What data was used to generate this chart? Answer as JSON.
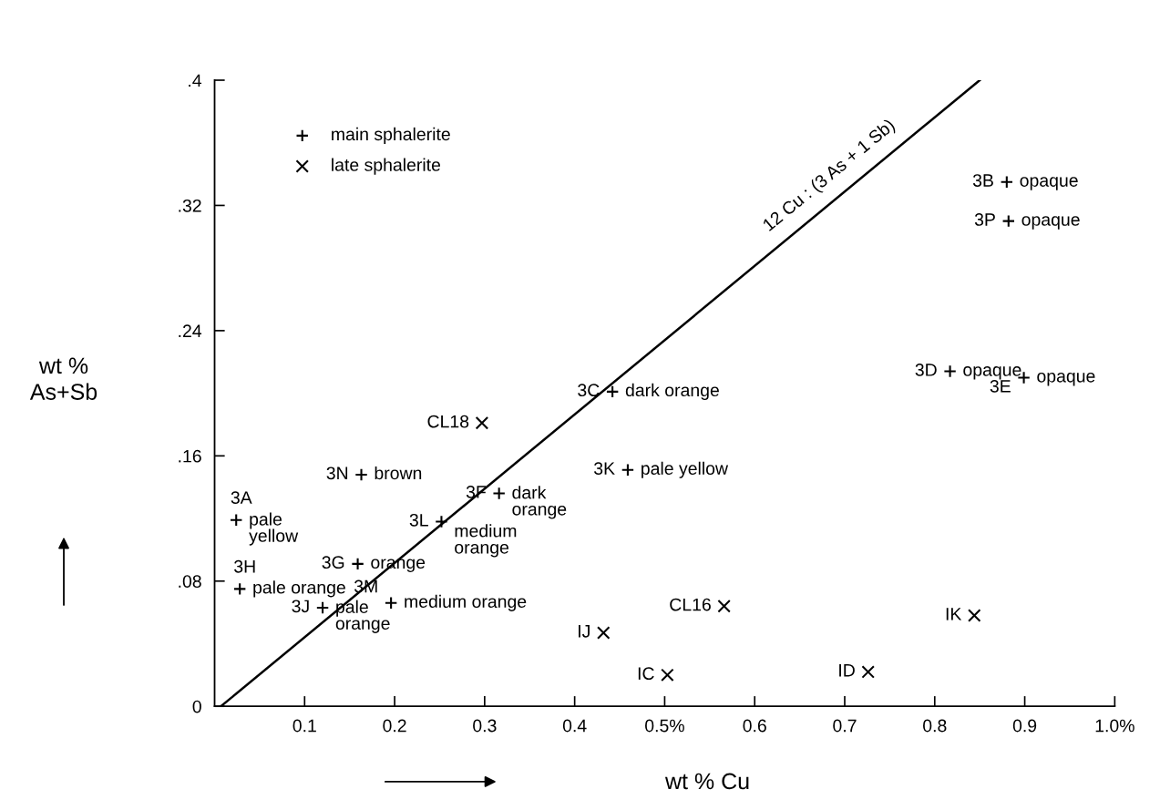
{
  "chart_data": {
    "type": "scatter",
    "xlabel": "wt % Cu",
    "ylabel": "wt %\nAs+Sb",
    "xlim": [
      0,
      1.0
    ],
    "ylim": [
      0,
      0.4
    ],
    "xticks": [
      0.1,
      0.2,
      0.3,
      0.4,
      {
        "value": 0.5,
        "label": "0.5%"
      },
      0.6,
      0.7,
      0.8,
      0.9,
      {
        "value": 1.0,
        "label": "1.0%"
      }
    ],
    "yticks": [
      {
        "value": 0,
        "label": "0"
      },
      {
        "value": 0.08,
        "label": ".08"
      },
      {
        "value": 0.16,
        "label": ".16"
      },
      {
        "value": 0.24,
        "label": ".24"
      },
      {
        "value": 0.32,
        "label": ".32"
      },
      {
        "value": 0.4,
        "label": ".4"
      }
    ],
    "grid": false,
    "legend": "top left",
    "series": [
      {
        "name": "main sphalerite",
        "color": "#000000",
        "marker": "plus",
        "x": [
          0.024,
          0.028,
          0.163,
          0.316,
          0.252,
          0.159,
          0.12,
          0.196,
          0.459,
          0.442,
          0.88,
          0.882,
          0.817,
          0.899
        ],
        "values": [
          0.119,
          0.075,
          0.148,
          0.136,
          0.118,
          0.091,
          0.063,
          0.066,
          0.151,
          0.201,
          0.335,
          0.31,
          0.214,
          0.21
        ]
      },
      {
        "name": "late sphalerite",
        "color": "#000000",
        "marker": "cross",
        "x": [
          0.297,
          0.432,
          0.503,
          0.566,
          0.726,
          0.844
        ],
        "values": [
          0.181,
          0.047,
          0.02,
          0.064,
          0.022,
          0.058
        ]
      },
      {
        "type": "line",
        "color": "#000000",
        "line_style": "solid",
        "x": [
          0.007,
          0.85
        ],
        "values": [
          0,
          0.4
        ]
      }
    ],
    "annotations": [
      {
        "text": "3A",
        "x": 0.024,
        "y": 0.119
      },
      {
        "text": "pale\nyellow",
        "x": 0.024,
        "y": 0.119
      },
      {
        "text": "3H",
        "x": 0.028,
        "y": 0.075
      },
      {
        "text": "pale orange",
        "x": 0.028,
        "y": 0.075
      },
      {
        "text": "3N",
        "x": 0.163,
        "y": 0.148
      },
      {
        "text": "brown",
        "x": 0.163,
        "y": 0.148
      },
      {
        "text": "3F",
        "x": 0.316,
        "y": 0.136
      },
      {
        "text": "dark\norange",
        "x": 0.316,
        "y": 0.136
      },
      {
        "text": "3L",
        "x": 0.252,
        "y": 0.118
      },
      {
        "text": "medium\norange",
        "x": 0.252,
        "y": 0.118
      },
      {
        "text": "3G",
        "x": 0.159,
        "y": 0.091
      },
      {
        "text": "orange",
        "x": 0.159,
        "y": 0.091
      },
      {
        "text": "3J",
        "x": 0.12,
        "y": 0.063
      },
      {
        "text": "pale\norange",
        "x": 0.12,
        "y": 0.063
      },
      {
        "text": "3M",
        "x": 0.196,
        "y": 0.066
      },
      {
        "text": "medium orange",
        "x": 0.196,
        "y": 0.066
      },
      {
        "text": "3K",
        "x": 0.459,
        "y": 0.151
      },
      {
        "text": "pale yellow",
        "x": 0.459,
        "y": 0.151
      },
      {
        "text": "3C",
        "x": 0.442,
        "y": 0.201
      },
      {
        "text": "dark orange",
        "x": 0.442,
        "y": 0.201
      },
      {
        "text": "3B",
        "x": 0.88,
        "y": 0.335
      },
      {
        "text": "opaque",
        "x": 0.88,
        "y": 0.335
      },
      {
        "text": "3P",
        "x": 0.882,
        "y": 0.31
      },
      {
        "text": "opaque",
        "x": 0.882,
        "y": 0.31
      },
      {
        "text": "3D",
        "x": 0.817,
        "y": 0.214
      },
      {
        "text": "opaque",
        "x": 0.817,
        "y": 0.214
      },
      {
        "text": "3E",
        "x": 0.899,
        "y": 0.21
      },
      {
        "text": "opaque",
        "x": 0.899,
        "y": 0.21
      },
      {
        "text": "CL18",
        "x": 0.297,
        "y": 0.181
      },
      {
        "text": "IJ",
        "x": 0.432,
        "y": 0.047
      },
      {
        "text": "IC",
        "x": 0.503,
        "y": 0.02
      },
      {
        "text": "CL16",
        "x": 0.566,
        "y": 0.064
      },
      {
        "text": "ID",
        "x": 0.726,
        "y": 0.022
      },
      {
        "text": "IK",
        "x": 0.844,
        "y": 0.058
      },
      {
        "text": "12 Cu : (3 As + 1 Sb)",
        "x": 0.7,
        "y": 0.329
      }
    ]
  }
}
